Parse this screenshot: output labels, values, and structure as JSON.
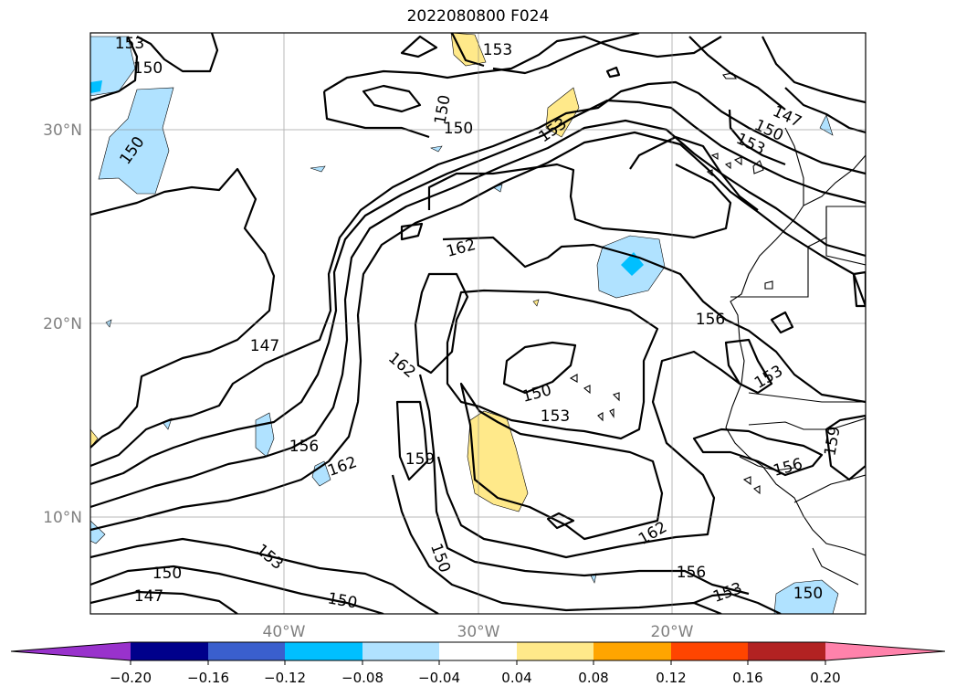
{
  "title": "2022080800 F024",
  "map": {
    "lat_labels": [
      "30°N",
      "20°N",
      "10°N"
    ],
    "lon_labels": [
      "40°W",
      "30°W",
      "20°W"
    ],
    "contour_labels": [
      "153",
      "150",
      "150",
      "153",
      "153",
      "150",
      "147",
      "150",
      "153",
      "150",
      "162",
      "156",
      "147",
      "162",
      "150",
      "153",
      "153",
      "156",
      "162",
      "159",
      "159",
      "156",
      "153",
      "150",
      "150",
      "162",
      "156",
      "153",
      "150",
      "147",
      "150"
    ]
  },
  "colorbar": {
    "ticks": [
      "−0.20",
      "−0.16",
      "−0.12",
      "−0.08",
      "−0.04",
      "0.04",
      "0.08",
      "0.12",
      "0.16",
      "0.20"
    ],
    "colors": [
      "#9932cc",
      "#00008b",
      "#3a5fcd",
      "#00bfff",
      "#b0e2ff",
      "#ffffff",
      "#ffe98a",
      "#ffa500",
      "#ff4500",
      "#b22222",
      "#ff82ab"
    ]
  }
}
